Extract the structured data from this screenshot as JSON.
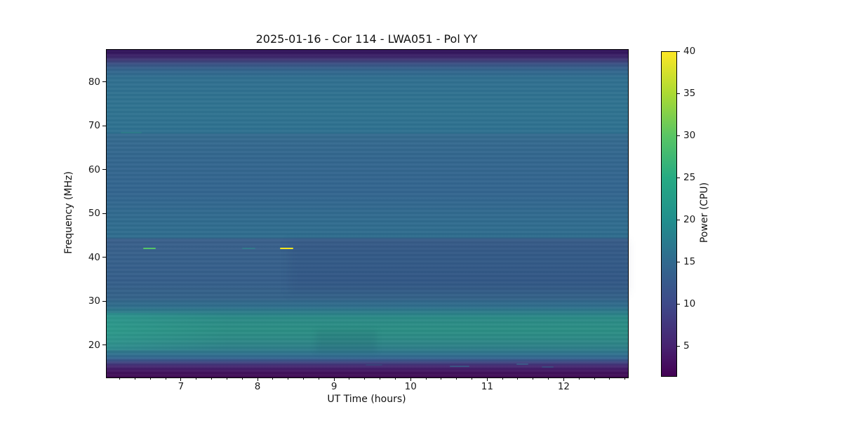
{
  "figure": {
    "background_color": "#ffffff",
    "text_color": "#111111"
  },
  "chart_data": {
    "type": "heatmap",
    "subtype": "dynamic-spectrum-spectrogram",
    "title": "2025-01-16 - Cor 114 - LWA051 - Pol YY",
    "xlabel": "UT Time (hours)",
    "ylabel": "Frequency (MHz)",
    "colorbar_label": "Power (CPU)",
    "x_range": [
      6.02,
      12.83
    ],
    "y_range": [
      12.8,
      87.5
    ],
    "clim": [
      1.5,
      40
    ],
    "x_ticks": [
      7,
      8,
      9,
      10,
      11,
      12
    ],
    "x_minor_step": 0.2,
    "y_ticks": [
      20,
      30,
      40,
      50,
      60,
      70,
      80
    ],
    "colorbar_ticks": [
      5,
      10,
      15,
      20,
      25,
      30,
      35,
      40
    ],
    "colormap": "viridis",
    "legend": "none",
    "grid": false,
    "colorbar_gradient": [
      {
        "v": 40,
        "c": "#fde725"
      },
      {
        "v": 35,
        "c": "#aada33"
      },
      {
        "v": 30,
        "c": "#58c564"
      },
      {
        "v": 25,
        "c": "#26aa83"
      },
      {
        "v": 20,
        "c": "#218e8d"
      },
      {
        "v": 15,
        "c": "#31698e"
      },
      {
        "v": 10,
        "c": "#3e4989"
      },
      {
        "v": 5,
        "c": "#472270"
      },
      {
        "v": 1.5,
        "c": "#440154"
      }
    ],
    "freq_profile": [
      {
        "freq": 87.4,
        "power": 2.5,
        "color": "#2f1258"
      },
      {
        "freq": 86.2,
        "power": 5,
        "color": "#3b2066"
      },
      {
        "freq": 85.2,
        "power": 8,
        "color": "#3f3a76"
      },
      {
        "freq": 84.2,
        "power": 11,
        "color": "#3a5385"
      },
      {
        "freq": 82.8,
        "power": 14,
        "color": "#33658d"
      },
      {
        "freq": 81.0,
        "power": 15.5,
        "color": "#307090"
      },
      {
        "freq": 74.0,
        "power": 16,
        "color": "#2f7390"
      },
      {
        "freq": 68.6,
        "power": 15.8,
        "color": "#2e7190"
      },
      {
        "freq": 68.2,
        "power": 15,
        "color": "#346a8e"
      },
      {
        "freq": 62.0,
        "power": 14.8,
        "color": "#33668e"
      },
      {
        "freq": 55.0,
        "power": 14.8,
        "color": "#33658f"
      },
      {
        "freq": 48.0,
        "power": 15.2,
        "color": "#306c8e"
      },
      {
        "freq": 44.8,
        "power": 15.2,
        "color": "#2f6d8e"
      },
      {
        "freq": 44.3,
        "power": 13.5,
        "color": "#395f8a"
      },
      {
        "freq": 40.0,
        "power": 13,
        "color": "#36608b"
      },
      {
        "freq": 35.0,
        "power": 12.8,
        "color": "#355e8a"
      },
      {
        "freq": 31.0,
        "power": 13.5,
        "color": "#346289"
      },
      {
        "freq": 29.0,
        "power": 15,
        "color": "#2f6e8c"
      },
      {
        "freq": 27.5,
        "power": 17.5,
        "color": "#2c7e89"
      },
      {
        "freq": 26.5,
        "power": 19.5,
        "color": "#2b8a86"
      },
      {
        "freq": 23.5,
        "power": 20.5,
        "color": "#2b8e84"
      },
      {
        "freq": 21.0,
        "power": 19,
        "color": "#2d8786"
      },
      {
        "freq": 19.3,
        "power": 17.5,
        "color": "#2e7d89"
      },
      {
        "freq": 18.2,
        "power": 15.5,
        "color": "#30728e"
      },
      {
        "freq": 17.2,
        "power": 13,
        "color": "#346690"
      },
      {
        "freq": 16.4,
        "power": 10,
        "color": "#3e4a83"
      },
      {
        "freq": 15.5,
        "power": 7,
        "color": "#452c74"
      },
      {
        "freq": 14.3,
        "power": 4,
        "color": "#431560"
      },
      {
        "freq": 12.9,
        "power": 2,
        "color": "#3f0a52"
      }
    ],
    "events": [
      {
        "name": "bright-dash-green",
        "t_start": 6.5,
        "t_end": 6.66,
        "freq": 42.2,
        "power": 30,
        "color": "#55c667",
        "height": 2,
        "opacity": 1
      },
      {
        "name": "faint-dash-teal",
        "t_start": 7.79,
        "t_end": 7.96,
        "freq": 42.3,
        "power": 18,
        "color": "#2f8a8a",
        "height": 2,
        "opacity": 0.6
      },
      {
        "name": "bright-dash-yellow",
        "t_start": 8.28,
        "t_end": 8.46,
        "freq": 42.2,
        "power": 40,
        "color": "#f4e61e",
        "height": 2.5,
        "opacity": 1
      },
      {
        "name": "faint-dash-68mhz",
        "t_start": 6.2,
        "t_end": 6.48,
        "freq": 68.6,
        "power": 17,
        "color": "#2f8a84",
        "height": 1.5,
        "opacity": 0.45
      },
      {
        "name": "rfi-dash-1",
        "t_start": 10.5,
        "t_end": 10.76,
        "freq": 15.4,
        "power": 9,
        "color": "#3a5a86",
        "height": 2,
        "opacity": 0.85
      },
      {
        "name": "rfi-dash-2",
        "t_start": 11.37,
        "t_end": 11.53,
        "freq": 15.8,
        "power": 10,
        "color": "#3c5f8a",
        "height": 2,
        "opacity": 0.85
      },
      {
        "name": "rfi-dash-3",
        "t_start": 11.7,
        "t_end": 11.86,
        "freq": 15.2,
        "power": 8,
        "color": "#3a4f80",
        "height": 2,
        "opacity": 0.8
      },
      {
        "name": "rfi-dash-4",
        "t_start": 9.4,
        "t_end": 9.62,
        "freq": 15.6,
        "power": 7,
        "color": "#364a7e",
        "height": 2,
        "opacity": 0.55
      }
    ],
    "overlays": [
      {
        "name": "low-band-bright-left",
        "t0": 6.02,
        "t1": 7.6,
        "f0": 19.0,
        "f1": 27.5,
        "background": "linear-gradient(90deg, rgba(52,195,160,0.20), rgba(52,195,160,0) 100%)",
        "blur": 0
      },
      {
        "name": "mid-band-dark-patch",
        "t0": 8.4,
        "t1": 12.83,
        "f0": 32.0,
        "f1": 44.0,
        "background": "rgba(25,40,95,0.10)",
        "blur": 6
      },
      {
        "name": "low-band-dim-patch",
        "t0": 8.75,
        "t1": 9.55,
        "f0": 18.5,
        "f1": 23.5,
        "background": "rgba(20,60,90,0.10)",
        "blur": 4
      }
    ]
  }
}
